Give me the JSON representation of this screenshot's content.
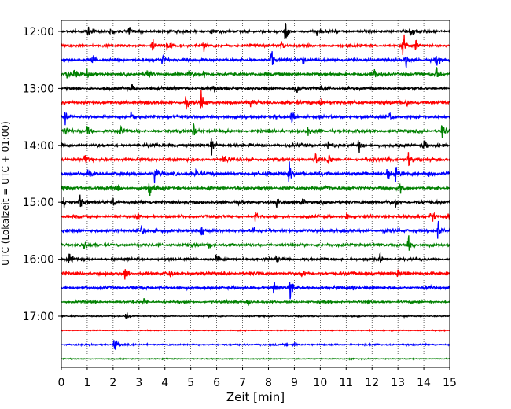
{
  "chart_data": {
    "type": "line",
    "title": "",
    "xlabel": "Zeit  [min]",
    "ylabel": "UTC (Lokalzeit = UTC + 01:00)",
    "xlim": [
      0,
      15
    ],
    "x_ticks": [
      "0",
      "1",
      "2",
      "3",
      "4",
      "5",
      "6",
      "7",
      "8",
      "9",
      "10",
      "11",
      "12",
      "13",
      "14",
      "15"
    ],
    "y_ticks": [
      {
        "label": "12:00",
        "row": 0
      },
      {
        "label": "13:00",
        "row": 4
      },
      {
        "label": "14:00",
        "row": 8
      },
      {
        "label": "15:00",
        "row": 12
      },
      {
        "label": "16:00",
        "row": 16
      },
      {
        "label": "17:00",
        "row": 20
      }
    ],
    "row_interval_min": 15,
    "grid": "vertical dotted",
    "colors": [
      "#000000",
      "#ff0000",
      "#0000ff",
      "#008000"
    ],
    "traces": [
      {
        "start": "12:00",
        "color": "#000000",
        "amplitude": 0.9,
        "events": [
          [
            1.0,
            0.8
          ],
          [
            1.9,
            0.6
          ],
          [
            2.6,
            0.7
          ],
          [
            5.8,
            0.6
          ],
          [
            8.65,
            1.6
          ],
          [
            9.9,
            0.6
          ],
          [
            13.5,
            0.7
          ]
        ]
      },
      {
        "start": "12:15",
        "color": "#ff0000",
        "amplitude": 0.9,
        "events": [
          [
            3.5,
            1.6
          ],
          [
            4.1,
            0.8
          ],
          [
            5.5,
            0.6
          ],
          [
            8.5,
            0.7
          ],
          [
            13.2,
            1.6
          ],
          [
            13.7,
            0.7
          ]
        ]
      },
      {
        "start": "12:30",
        "color": "#0000ff",
        "amplitude": 1.0,
        "events": [
          [
            1.2,
            0.8
          ],
          [
            3.9,
            0.7
          ],
          [
            8.1,
            1.6
          ],
          [
            9.3,
            0.7
          ],
          [
            13.3,
            1.2
          ],
          [
            14.5,
            0.8
          ]
        ]
      },
      {
        "start": "12:45",
        "color": "#008000",
        "amplitude": 1.0,
        "events": [
          [
            0.2,
            0.8
          ],
          [
            0.5,
            0.7
          ],
          [
            1.0,
            0.6
          ],
          [
            3.3,
            1.4
          ],
          [
            4.9,
            0.6
          ],
          [
            5.5,
            0.6
          ],
          [
            12.1,
            0.8
          ],
          [
            14.5,
            1.6
          ]
        ]
      },
      {
        "start": "13:00",
        "color": "#000000",
        "amplitude": 0.9,
        "events": [
          [
            2.7,
            0.6
          ],
          [
            5.9,
            0.6
          ],
          [
            9.05,
            1.6
          ],
          [
            10.0,
            0.6
          ]
        ]
      },
      {
        "start": "13:15",
        "color": "#ff0000",
        "amplitude": 1.0,
        "events": [
          [
            4.8,
            0.9
          ],
          [
            5.4,
            1.6
          ],
          [
            7.3,
            0.7
          ],
          [
            10.0,
            0.7
          ],
          [
            13.3,
            0.7
          ]
        ]
      },
      {
        "start": "13:30",
        "color": "#0000ff",
        "amplitude": 1.0,
        "events": [
          [
            0.15,
            1.4
          ],
          [
            2.7,
            0.6
          ],
          [
            8.9,
            1.6
          ],
          [
            12.7,
            0.8
          ]
        ]
      },
      {
        "start": "13:45",
        "color": "#008000",
        "amplitude": 1.0,
        "events": [
          [
            0.1,
            1.0
          ],
          [
            1.0,
            0.7
          ],
          [
            2.3,
            0.6
          ],
          [
            5.1,
            1.3
          ],
          [
            9.5,
            0.6
          ],
          [
            14.7,
            1.2
          ]
        ]
      },
      {
        "start": "14:00",
        "color": "#000000",
        "amplitude": 1.0,
        "events": [
          [
            5.8,
            1.6
          ],
          [
            10.3,
            0.6
          ],
          [
            11.5,
            0.9
          ],
          [
            14.0,
            0.8
          ]
        ]
      },
      {
        "start": "14:15",
        "color": "#ff0000",
        "amplitude": 1.0,
        "events": [
          [
            0.9,
            0.9
          ],
          [
            6.25,
            1.2
          ],
          [
            9.8,
            1.0
          ],
          [
            10.3,
            0.8
          ],
          [
            12.6,
            0.7
          ],
          [
            13.4,
            1.2
          ]
        ]
      },
      {
        "start": "14:30",
        "color": "#0000ff",
        "amplitude": 1.1,
        "events": [
          [
            1.0,
            0.7
          ],
          [
            3.6,
            1.6
          ],
          [
            5.2,
            1.0
          ],
          [
            8.8,
            1.5
          ],
          [
            12.6,
            1.2
          ],
          [
            12.9,
            0.9
          ],
          [
            14.2,
            0.7
          ]
        ]
      },
      {
        "start": "14:45",
        "color": "#008000",
        "amplitude": 1.0,
        "events": [
          [
            2.2,
            0.6
          ],
          [
            3.4,
            1.2
          ],
          [
            10.2,
            0.9
          ],
          [
            13.1,
            0.8
          ]
        ]
      },
      {
        "start": "15:00",
        "color": "#000000",
        "amplitude": 1.1,
        "events": [
          [
            0.1,
            0.9
          ],
          [
            0.7,
            1.0
          ],
          [
            2.0,
            0.6
          ],
          [
            8.3,
            0.8
          ],
          [
            9.3,
            0.6
          ],
          [
            12.9,
            0.7
          ]
        ]
      },
      {
        "start": "15:15",
        "color": "#ff0000",
        "amplitude": 0.9,
        "events": [
          [
            2.9,
            0.8
          ],
          [
            7.5,
            0.7
          ],
          [
            11.0,
            0.6
          ],
          [
            14.3,
            1.2
          ],
          [
            14.9,
            0.8
          ]
        ]
      },
      {
        "start": "15:30",
        "color": "#0000ff",
        "amplitude": 1.0,
        "events": [
          [
            3.1,
            0.8
          ],
          [
            5.4,
            1.4
          ],
          [
            7.4,
            0.6
          ],
          [
            14.55,
            1.4
          ]
        ]
      },
      {
        "start": "15:45",
        "color": "#008000",
        "amplitude": 0.9,
        "events": [
          [
            0.9,
            0.7
          ],
          [
            5.7,
            0.6
          ],
          [
            13.4,
            1.2
          ]
        ]
      },
      {
        "start": "16:00",
        "color": "#000000",
        "amplitude": 0.9,
        "events": [
          [
            0.3,
            1.0
          ],
          [
            6.0,
            0.6
          ],
          [
            8.3,
            0.6
          ],
          [
            12.3,
            0.7
          ]
        ]
      },
      {
        "start": "16:15",
        "color": "#ff0000",
        "amplitude": 0.9,
        "events": [
          [
            2.45,
            1.0
          ],
          [
            4.2,
            0.6
          ],
          [
            9.3,
            0.6
          ],
          [
            13.0,
            0.6
          ]
        ]
      },
      {
        "start": "16:30",
        "color": "#0000ff",
        "amplitude": 0.9,
        "events": [
          [
            8.2,
            0.8
          ],
          [
            8.85,
            1.5
          ],
          [
            11.2,
            0.5
          ]
        ]
      },
      {
        "start": "16:45",
        "color": "#008000",
        "amplitude": 0.7,
        "events": [
          [
            3.2,
            0.6
          ],
          [
            7.2,
            0.5
          ]
        ]
      },
      {
        "start": "17:00",
        "color": "#000000",
        "amplitude": 0.4,
        "events": [
          [
            2.5,
            0.4
          ]
        ]
      },
      {
        "start": "17:15",
        "color": "#ff0000",
        "amplitude": 0.3,
        "events": []
      },
      {
        "start": "17:30",
        "color": "#0000ff",
        "amplitude": 0.5,
        "events": [
          [
            2.05,
            1.4
          ],
          [
            9.0,
            0.4
          ]
        ]
      },
      {
        "start": "17:45",
        "color": "#008000",
        "amplitude": 0.3,
        "events": []
      }
    ]
  }
}
